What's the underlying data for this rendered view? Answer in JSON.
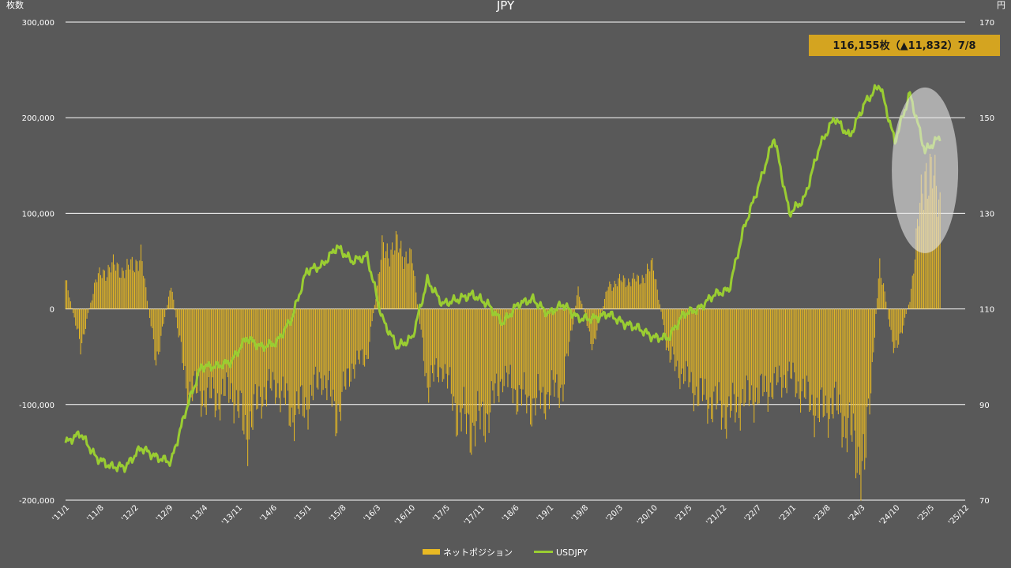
{
  "chart_data": {
    "type": "bar",
    "title": "JPY",
    "y_left_label": "枚数",
    "y_right_label": "円",
    "y_left_ticks": [
      "300,000",
      "200,000",
      "100,000",
      "0",
      "-100,000",
      "-200,000"
    ],
    "y_right_ticks": [
      "170",
      "150",
      "130",
      "110",
      "90",
      "70"
    ],
    "ylim_left": [
      -200000,
      300000
    ],
    "ylim_right": [
      70,
      170
    ],
    "x_ticks": [
      "'11/1",
      "'11/8",
      "'12/2",
      "'12/9",
      "'13/4",
      "'13/11",
      "'14/6",
      "'15/1",
      "'15/8",
      "'16/3",
      "'16/10",
      "'17/5",
      "'17/11",
      "'18/6",
      "'19/1",
      "'19/8",
      "'20/3",
      "'20/10",
      "'21/5",
      "'21/12",
      "'22/7",
      "'23/1",
      "'23/8",
      "'24/3",
      "'24/10",
      "'25/5",
      "'25/12"
    ],
    "x_range": [
      "2011-01",
      "2025-12"
    ],
    "grid": true,
    "legend_position": "bottom-center",
    "callout": "116,155枚（▲11,832）7/8",
    "highlight": "ellipse around 2025 data",
    "colors": {
      "background": "#595959",
      "bars": "#e8b923",
      "line": "#9acd32",
      "callout_bg": "#d4a420",
      "ellipse": "#e6e6e6"
    },
    "series": [
      {
        "name": "ネットポジション",
        "type": "bar",
        "axis": "left",
        "x": [
          "2011-01",
          "2011-04",
          "2011-07",
          "2011-10",
          "2012-01",
          "2012-04",
          "2012-07",
          "2012-10",
          "2013-01",
          "2013-04",
          "2013-07",
          "2013-10",
          "2014-01",
          "2014-04",
          "2014-07",
          "2014-10",
          "2015-01",
          "2015-04",
          "2015-07",
          "2015-10",
          "2016-01",
          "2016-04",
          "2016-07",
          "2016-10",
          "2017-01",
          "2017-04",
          "2017-07",
          "2017-10",
          "2018-01",
          "2018-04",
          "2018-07",
          "2018-10",
          "2019-01",
          "2019-04",
          "2019-07",
          "2019-10",
          "2020-01",
          "2020-04",
          "2020-07",
          "2020-10",
          "2021-01",
          "2021-04",
          "2021-07",
          "2021-10",
          "2022-01",
          "2022-04",
          "2022-07",
          "2022-10",
          "2023-01",
          "2023-04",
          "2023-07",
          "2023-10",
          "2024-01",
          "2024-04",
          "2024-07",
          "2024-10",
          "2025-01",
          "2025-04",
          "2025-07"
        ],
        "values": [
          30000,
          -40000,
          30000,
          45000,
          40000,
          55000,
          -55000,
          25000,
          -80000,
          -90000,
          -95000,
          -85000,
          -130000,
          -90000,
          -80000,
          -110000,
          -100000,
          -70000,
          -110000,
          -60000,
          -50000,
          60000,
          65000,
          50000,
          -80000,
          -60000,
          -110000,
          -125000,
          -110000,
          -70000,
          -90000,
          -100000,
          -90000,
          -80000,
          20000,
          -40000,
          25000,
          30000,
          30000,
          45000,
          -50000,
          -70000,
          -90000,
          -100000,
          -110000,
          -95000,
          -90000,
          -80000,
          -70000,
          -90000,
          -110000,
          -100000,
          -130000,
          -170000,
          50000,
          -50000,
          10000,
          150000,
          116155
        ]
      },
      {
        "name": "USDJPY",
        "type": "line",
        "axis": "right",
        "x": [
          "2011-01",
          "2011-04",
          "2011-07",
          "2011-10",
          "2012-01",
          "2012-04",
          "2012-07",
          "2012-10",
          "2013-01",
          "2013-04",
          "2013-07",
          "2013-10",
          "2014-01",
          "2014-04",
          "2014-07",
          "2014-10",
          "2015-01",
          "2015-04",
          "2015-07",
          "2015-10",
          "2016-01",
          "2016-04",
          "2016-07",
          "2016-10",
          "2017-01",
          "2017-04",
          "2017-07",
          "2017-10",
          "2018-01",
          "2018-04",
          "2018-07",
          "2018-10",
          "2019-01",
          "2019-04",
          "2019-07",
          "2019-10",
          "2020-01",
          "2020-04",
          "2020-07",
          "2020-10",
          "2021-01",
          "2021-04",
          "2021-07",
          "2021-10",
          "2022-01",
          "2022-04",
          "2022-07",
          "2022-10",
          "2023-01",
          "2023-04",
          "2023-07",
          "2023-10",
          "2024-01",
          "2024-04",
          "2024-07",
          "2024-10",
          "2025-01",
          "2025-04",
          "2025-07"
        ],
        "values": [
          82,
          84,
          79,
          77,
          77,
          81,
          79,
          78,
          89,
          98,
          98,
          99,
          104,
          102,
          103,
          108,
          118,
          119,
          123,
          120,
          121,
          108,
          102,
          104,
          116,
          111,
          112,
          113,
          111,
          107,
          111,
          112,
          109,
          111,
          108,
          108,
          109,
          107,
          106,
          104,
          104,
          109,
          110,
          113,
          114,
          127,
          136,
          146,
          130,
          133,
          144,
          150,
          146,
          153,
          157,
          145,
          155,
          143,
          146
        ]
      }
    ]
  }
}
